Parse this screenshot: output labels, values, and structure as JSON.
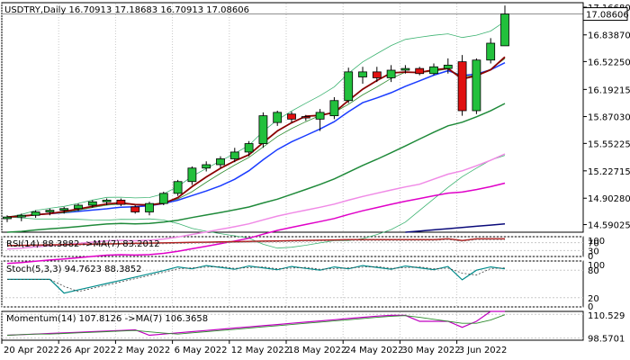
{
  "colors": {
    "bull": "#22c03c",
    "bear": "#e01010",
    "grid": "#c8c8c8",
    "ma_fast": "#8b0000",
    "ma_green_thin": "#2e8b2e",
    "ma_blue": "#1a3cff",
    "ma_green": "#1f8a3a",
    "ma_pink": "#f08ae6",
    "ma_magenta": "#e000c8",
    "ma_navy": "#0a0a7a",
    "bb": "#3cb371",
    "rsi_line": "#b22222",
    "stoch_main": "#008b8b",
    "stoch_signal": "#404040",
    "momentum": "#c000c0",
    "momentum_ma": "#2e8b2e"
  },
  "chart_data": [
    {
      "type": "candlestick",
      "title": "USDTRY,Daily  16.70913 17.18683 16.70913 17.08606",
      "header": {
        "symbol": "USDTRY,Daily",
        "open": "16.70913",
        "high": "17.18683",
        "low": "16.70913",
        "close": "17.08606"
      },
      "price_tick_labels": [
        "17.16680",
        "16.83870",
        "16.52250",
        "16.19215",
        "15.87030",
        "15.55225",
        "15.22715",
        "14.90280",
        "14.59025"
      ],
      "price_ticks": [
        17.1668,
        16.8387,
        16.5225,
        16.19215,
        15.8703,
        15.55225,
        15.22715,
        14.9028,
        14.59025
      ],
      "current_price_label": "17.08606",
      "current_price": 17.08606,
      "ylim": [
        14.5,
        17.22
      ],
      "x_tick_labels": [
        "20 Apr 2022",
        "26 Apr 2022",
        "2 May 2022",
        "6 May 2022",
        "12 May 2022",
        "18 May 2022",
        "24 May 2022",
        "30 May 2022",
        "3 Jun 2022"
      ],
      "x_tick_index": [
        0,
        4,
        8,
        12,
        16,
        20,
        24,
        28,
        32
      ],
      "candles": [
        {
          "o": 14.66,
          "h": 14.7,
          "l": 14.62,
          "c": 14.68
        },
        {
          "o": 14.68,
          "h": 14.72,
          "l": 14.63,
          "c": 14.7
        },
        {
          "o": 14.7,
          "h": 14.76,
          "l": 14.67,
          "c": 14.74
        },
        {
          "o": 14.74,
          "h": 14.78,
          "l": 14.7,
          "c": 14.76
        },
        {
          "o": 14.76,
          "h": 14.8,
          "l": 14.72,
          "c": 14.78
        },
        {
          "o": 14.78,
          "h": 14.84,
          "l": 14.75,
          "c": 14.82
        },
        {
          "o": 14.82,
          "h": 14.88,
          "l": 14.79,
          "c": 14.86
        },
        {
          "o": 14.86,
          "h": 14.9,
          "l": 14.82,
          "c": 14.88
        },
        {
          "o": 14.88,
          "h": 14.9,
          "l": 14.81,
          "c": 14.83
        },
        {
          "o": 14.8,
          "h": 14.82,
          "l": 14.72,
          "c": 14.74
        },
        {
          "o": 14.74,
          "h": 14.86,
          "l": 14.7,
          "c": 14.84
        },
        {
          "o": 14.84,
          "h": 14.98,
          "l": 14.82,
          "c": 14.96
        },
        {
          "o": 14.96,
          "h": 15.12,
          "l": 14.93,
          "c": 15.1
        },
        {
          "o": 15.1,
          "h": 15.28,
          "l": 15.06,
          "c": 15.26
        },
        {
          "o": 15.26,
          "h": 15.34,
          "l": 15.22,
          "c": 15.3
        },
        {
          "o": 15.3,
          "h": 15.4,
          "l": 15.26,
          "c": 15.37
        },
        {
          "o": 15.37,
          "h": 15.5,
          "l": 15.33,
          "c": 15.45
        },
        {
          "o": 15.45,
          "h": 15.58,
          "l": 15.4,
          "c": 15.55
        },
        {
          "o": 15.55,
          "h": 15.92,
          "l": 15.5,
          "c": 15.88
        },
        {
          "o": 15.8,
          "h": 15.94,
          "l": 15.76,
          "c": 15.92
        },
        {
          "o": 15.9,
          "h": 15.93,
          "l": 15.8,
          "c": 15.84
        },
        {
          "o": 15.87,
          "h": 15.89,
          "l": 15.82,
          "c": 15.86
        },
        {
          "o": 15.84,
          "h": 15.96,
          "l": 15.7,
          "c": 15.92
        },
        {
          "o": 15.88,
          "h": 16.1,
          "l": 15.84,
          "c": 16.06
        },
        {
          "o": 16.06,
          "h": 16.45,
          "l": 16.03,
          "c": 16.4
        },
        {
          "o": 16.34,
          "h": 16.46,
          "l": 16.26,
          "c": 16.4
        },
        {
          "o": 16.4,
          "h": 16.46,
          "l": 16.28,
          "c": 16.33
        },
        {
          "o": 16.33,
          "h": 16.48,
          "l": 16.28,
          "c": 16.42
        },
        {
          "o": 16.42,
          "h": 16.48,
          "l": 16.38,
          "c": 16.44
        },
        {
          "o": 16.44,
          "h": 16.46,
          "l": 16.36,
          "c": 16.38
        },
        {
          "o": 16.38,
          "h": 16.5,
          "l": 16.36,
          "c": 16.46
        },
        {
          "o": 16.44,
          "h": 16.56,
          "l": 16.38,
          "c": 16.48
        },
        {
          "o": 16.52,
          "h": 16.6,
          "l": 15.88,
          "c": 15.94
        },
        {
          "o": 15.94,
          "h": 16.56,
          "l": 15.9,
          "c": 16.54
        },
        {
          "o": 16.54,
          "h": 16.8,
          "l": 16.5,
          "c": 16.74
        },
        {
          "o": 16.70913,
          "h": 17.18683,
          "l": 16.70913,
          "c": 17.08606
        }
      ]
    },
    {
      "type": "line",
      "title": "RSI(14) 88.3882 ->MA(7) 83.2012",
      "tick_labels": [
        "100",
        "70",
        "30",
        "0"
      ],
      "ticks": [
        100,
        70,
        30,
        0
      ],
      "ylim": [
        0,
        100
      ]
    },
    {
      "type": "line",
      "title": "Stoch(5,3,3) 94.7623 88.3852",
      "tick_labels": [
        "100",
        "80",
        "20",
        "0"
      ],
      "ticks": [
        100,
        80,
        20,
        0
      ],
      "ylim": [
        0,
        100
      ]
    },
    {
      "type": "line",
      "title": "Momentum(14) 107.8126 ->MA(7) 106.3658",
      "tick_labels": [
        "110.529",
        "98.5701"
      ],
      "ticks": [
        110.529,
        98.5701
      ],
      "ylim": [
        97.5,
        112.0
      ]
    }
  ]
}
